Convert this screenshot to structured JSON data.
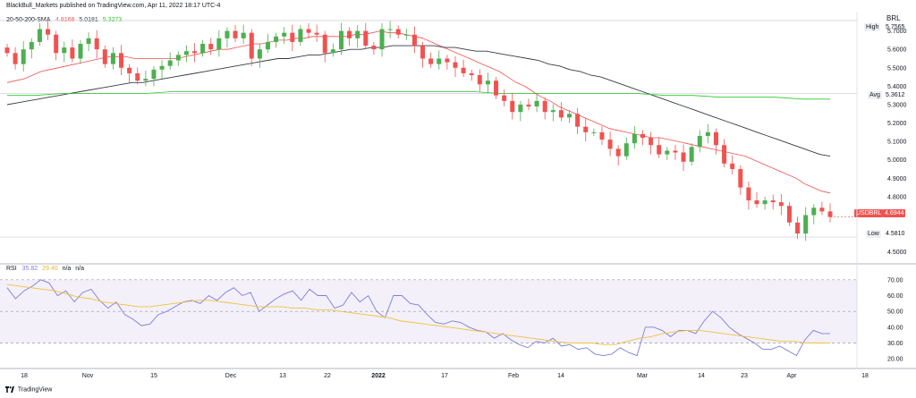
{
  "header": {
    "publisher": "BlackBull_Markets published on TradingView.com, Apr 11, 2022 18:17 UTC-4",
    "sma_label": "20-50-200-SMA",
    "sma_values": [
      "4.8168",
      "5.0181",
      "5.3273"
    ],
    "sma_colors": [
      "#ef5350",
      "#363a45",
      "#26c926"
    ],
    "currency": "BRL",
    "rsi_label": "RSI",
    "rsi_values": [
      "35.82",
      "29.40",
      "n/a",
      "n/a"
    ],
    "rsi_colors": [
      "#7e7ed8",
      "#f0c040",
      "#131722",
      "#131722"
    ]
  },
  "footer": {
    "brand": "TradingView"
  },
  "price_tags": {
    "high": {
      "label": "High",
      "value": "5.7565"
    },
    "avg": {
      "label": "Avg",
      "value": "5.3612"
    },
    "low": {
      "label": "Low",
      "value": "4.5810"
    },
    "last": {
      "label": "USDBRL",
      "value": "4.6944",
      "color": "#ef5350"
    }
  },
  "chart_data": [
    {
      "type": "candlestick",
      "title": "USDBRL",
      "y_range": [
        4.45,
        5.8
      ],
      "y_ticks": [
        "5.7000",
        "5.6000",
        "5.5000",
        "5.4000",
        "5.3000",
        "5.2000",
        "5.1000",
        "5.0000",
        "4.9000",
        "4.8000",
        "4.5000"
      ],
      "x_ticks": [
        "18",
        "Nov",
        "15",
        "Dec",
        "13",
        "22",
        "2022",
        "17",
        "Feb",
        "14",
        "Mar",
        "14",
        "23",
        "Apr",
        "18"
      ],
      "up_color": "#26a69a",
      "up_color_fill": "#4caf50",
      "down_color": "#ef5350",
      "closes": [
        5.58,
        5.52,
        5.6,
        5.64,
        5.71,
        5.68,
        5.58,
        5.61,
        5.55,
        5.63,
        5.66,
        5.6,
        5.52,
        5.58,
        5.5,
        5.47,
        5.43,
        5.44,
        5.49,
        5.51,
        5.54,
        5.57,
        5.59,
        5.58,
        5.63,
        5.6,
        5.66,
        5.7,
        5.66,
        5.69,
        5.55,
        5.6,
        5.64,
        5.67,
        5.69,
        5.64,
        5.71,
        5.69,
        5.68,
        5.58,
        5.6,
        5.7,
        5.66,
        5.7,
        5.62,
        5.6,
        5.71,
        5.71,
        5.68,
        5.68,
        5.62,
        5.55,
        5.52,
        5.55,
        5.53,
        5.5,
        5.47,
        5.46,
        5.41,
        5.43,
        5.35,
        5.32,
        5.26,
        5.3,
        5.29,
        5.32,
        5.26,
        5.27,
        5.23,
        5.25,
        5.18,
        5.15,
        5.15,
        5.11,
        5.06,
        5.02,
        5.09,
        5.14,
        5.12,
        5.08,
        5.03,
        5.05,
        5.04,
        4.99,
        5.07,
        5.13,
        5.15,
        5.08,
        4.98,
        4.95,
        4.85,
        4.78,
        4.76,
        4.78,
        4.77,
        4.75,
        4.66,
        4.6,
        4.7,
        4.74,
        4.72,
        4.69
      ],
      "series": [
        {
          "name": "SMA 20",
          "color": "#ef5350",
          "values": [
            5.42,
            5.43,
            5.44,
            5.46,
            5.48,
            5.49,
            5.5,
            5.51,
            5.52,
            5.53,
            5.54,
            5.55,
            5.56,
            5.56,
            5.56,
            5.55,
            5.55,
            5.55,
            5.55,
            5.55,
            5.55,
            5.56,
            5.57,
            5.58,
            5.59,
            5.6,
            5.6,
            5.61,
            5.62,
            5.63,
            5.63,
            5.64,
            5.65,
            5.65,
            5.66,
            5.66,
            5.67,
            5.67,
            5.67,
            5.67,
            5.67,
            5.68,
            5.68,
            5.69,
            5.7,
            5.69,
            5.69,
            5.68,
            5.67,
            5.66,
            5.64,
            5.62,
            5.6,
            5.58,
            5.56,
            5.54,
            5.52,
            5.5,
            5.48,
            5.45,
            5.42,
            5.4,
            5.37,
            5.34,
            5.32,
            5.29,
            5.27,
            5.25,
            5.23,
            5.21,
            5.19,
            5.17,
            5.16,
            5.15,
            5.14,
            5.13,
            5.12,
            5.12,
            5.11,
            5.1,
            5.09,
            5.08,
            5.07,
            5.06,
            5.05,
            5.04,
            5.03,
            5.02,
            5.0,
            4.98,
            4.96,
            4.94,
            4.92,
            4.9,
            4.87,
            4.85,
            4.83,
            4.82
          ]
        },
        {
          "name": "SMA 50",
          "color": "#363a45",
          "values": [
            5.3,
            5.31,
            5.32,
            5.33,
            5.34,
            5.35,
            5.36,
            5.37,
            5.38,
            5.39,
            5.4,
            5.41,
            5.42,
            5.42,
            5.43,
            5.44,
            5.45,
            5.46,
            5.47,
            5.48,
            5.49,
            5.5,
            5.51,
            5.52,
            5.53,
            5.54,
            5.55,
            5.55,
            5.56,
            5.57,
            5.57,
            5.58,
            5.59,
            5.6,
            5.6,
            5.61,
            5.61,
            5.62,
            5.62,
            5.62,
            5.62,
            5.62,
            5.61,
            5.61,
            5.6,
            5.59,
            5.59,
            5.58,
            5.57,
            5.56,
            5.55,
            5.54,
            5.52,
            5.51,
            5.49,
            5.48,
            5.46,
            5.45,
            5.43,
            5.41,
            5.39,
            5.37,
            5.35,
            5.33,
            5.31,
            5.29,
            5.27,
            5.25,
            5.23,
            5.21,
            5.19,
            5.17,
            5.15,
            5.13,
            5.11,
            5.09,
            5.07,
            5.05,
            5.03,
            5.02
          ]
        },
        {
          "name": "SMA 200",
          "color": "#26c926",
          "values": [
            5.35,
            5.35,
            5.36,
            5.36,
            5.36,
            5.36,
            5.37,
            5.37,
            5.37,
            5.37,
            5.37,
            5.37,
            5.37,
            5.37,
            5.37,
            5.37,
            5.37,
            5.37,
            5.36,
            5.36,
            5.36,
            5.36,
            5.36,
            5.36,
            5.35,
            5.35,
            5.34,
            5.34,
            5.34,
            5.33,
            5.33
          ]
        }
      ],
      "reference_lines": {
        "high": 5.7565,
        "avg": 5.3612,
        "low": 4.581
      }
    },
    {
      "type": "line",
      "title": "RSI",
      "y_range": [
        15,
        75
      ],
      "y_ticks": [
        "70.00",
        "60.00",
        "50.00",
        "40.00",
        "30.00",
        "20.00"
      ],
      "band": [
        30,
        70
      ],
      "series": [
        {
          "name": "RSI",
          "color": "#7e7ed8",
          "values": [
            65,
            58,
            63,
            66,
            70,
            68,
            60,
            63,
            56,
            62,
            64,
            57,
            52,
            56,
            48,
            45,
            41,
            42,
            48,
            50,
            53,
            56,
            57,
            55,
            60,
            57,
            62,
            65,
            60,
            62,
            50,
            54,
            58,
            61,
            63,
            57,
            64,
            60,
            60,
            52,
            54,
            62,
            56,
            60,
            50,
            46,
            60,
            60,
            55,
            54,
            48,
            43,
            42,
            44,
            43,
            40,
            38,
            37,
            33,
            36,
            32,
            29,
            27,
            31,
            30,
            33,
            28,
            29,
            26,
            27,
            23,
            22,
            23,
            27,
            24,
            22,
            40,
            40,
            38,
            34,
            38,
            38,
            36,
            44,
            50,
            46,
            40,
            36,
            33,
            30,
            26,
            26,
            28,
            25,
            22,
            32,
            38,
            36,
            36
          ]
        },
        {
          "name": "RSI MA",
          "color": "#f0c040",
          "values": [
            67,
            66,
            65,
            64,
            63,
            61,
            59,
            58,
            56,
            55,
            54,
            53,
            53,
            54,
            55,
            56,
            57,
            57,
            56,
            55,
            54,
            53,
            53,
            53,
            52,
            52,
            51,
            51,
            50,
            49,
            48,
            47,
            46,
            44,
            43,
            42,
            41,
            40,
            39,
            38,
            37,
            36,
            35,
            34,
            33,
            32,
            31,
            30,
            30,
            30,
            29,
            29,
            31,
            33,
            34,
            36,
            37,
            38,
            38,
            37,
            36,
            35,
            34,
            33,
            32,
            31,
            31,
            30,
            30,
            30
          ]
        }
      ]
    }
  ]
}
